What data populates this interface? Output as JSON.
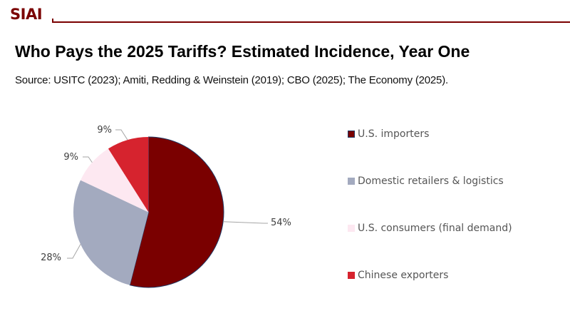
{
  "header": {
    "logo": "SIAI",
    "brand_color": "#7a0000"
  },
  "title": "Who Pays the 2025 Tariffs? Estimated Incidence, Year One",
  "subtitle": "Source: USITC (2023); Amiti, Redding & Weinstein (2019); CBO (2025); The Economy (2025).",
  "chart_data": {
    "type": "pie",
    "title": "Who Pays the 2025 Tariffs? Estimated Incidence, Year One",
    "categories": [
      "U.S. importers",
      "Domestic retailers & logistics",
      "U.S. consumers (final demand)",
      "Chinese exporters"
    ],
    "values": [
      54,
      28,
      9,
      9
    ],
    "labels": [
      "54%",
      "28%",
      "9%",
      "9%"
    ],
    "colors": [
      "#7a0000",
      "#a3aabf",
      "#fde8f1",
      "#d6232e"
    ],
    "start_angle": "12 o'clock",
    "direction": "clockwise",
    "legend_position": "right"
  }
}
